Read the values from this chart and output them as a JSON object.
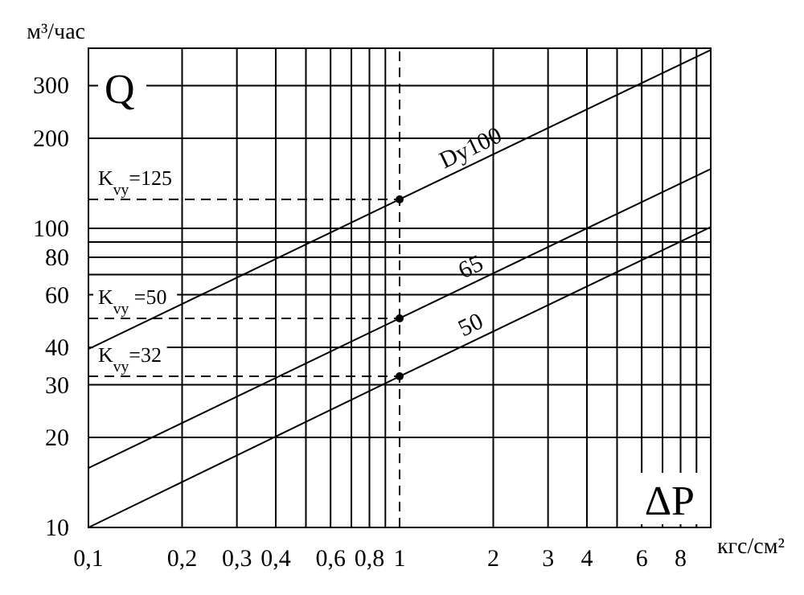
{
  "chart_data": {
    "type": "line",
    "xlabel": "кгс/см²",
    "ylabel": "м³/час",
    "log": "xy",
    "grid": true,
    "legend": false,
    "marker": "none",
    "line_style": "solid",
    "xlim": [
      0.1,
      10
    ],
    "ylim": [
      10,
      400
    ],
    "xticks": [
      {
        "value": 0.1,
        "label": "0,1"
      },
      {
        "value": 0.2,
        "label": "0,2"
      },
      {
        "value": 0.3,
        "label": "0,3"
      },
      {
        "value": 0.4,
        "label": "0,4"
      },
      {
        "value": 0.5,
        "label": null
      },
      {
        "value": 0.6,
        "label": "0,6"
      },
      {
        "value": 0.7,
        "label": null
      },
      {
        "value": 0.8,
        "label": "0,8"
      },
      {
        "value": 0.9,
        "label": null
      },
      1,
      2,
      3,
      4,
      {
        "value": 5,
        "label": null
      },
      6,
      {
        "value": 7,
        "label": null
      },
      8,
      {
        "value": 9,
        "label": null
      },
      {
        "value": 10,
        "label": null
      }
    ],
    "yticks": [
      10,
      20,
      30,
      40,
      60,
      {
        "value": 70,
        "label": null
      },
      80,
      {
        "value": 90,
        "label": null
      },
      100,
      200,
      300
    ],
    "series": [
      {
        "name": "Dy100",
        "color": "#000000",
        "x": [
          0.1,
          1,
          10
        ],
        "values": [
          39.5,
          125,
          395
        ]
      },
      {
        "name": "65",
        "color": "#000000",
        "x": [
          0.1,
          1,
          10
        ],
        "values": [
          15.8,
          50,
          158
        ]
      },
      {
        "name": "50",
        "color": "#000000",
        "x": [
          0.1,
          1,
          10
        ],
        "values": [
          10,
          32,
          101
        ]
      },
      {
        "type": "scatter",
        "marker": "circle",
        "color": "#000000",
        "x": [
          1,
          1,
          1
        ],
        "values": [
          125,
          50,
          32
        ]
      }
    ],
    "ref_lines": [
      {
        "axis": "y",
        "value": 125,
        "label": "K$_{vy}$=125",
        "line_style": "dashed"
      },
      {
        "axis": "y",
        "value": 50,
        "label": "K$_{vy}$ =50",
        "line_style": "dashed"
      },
      {
        "axis": "y",
        "value": 32,
        "label": "K$_{vy}$=32",
        "line_style": "dashed"
      },
      {
        "axis": "x",
        "value": 1,
        "line_style": "dashed"
      }
    ],
    "annotations": [
      "Q",
      "ΔP"
    ]
  }
}
